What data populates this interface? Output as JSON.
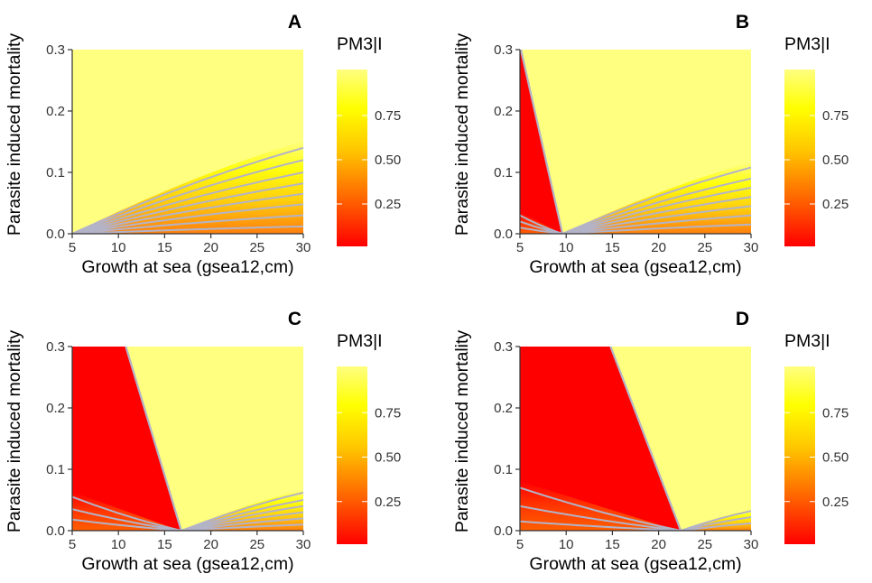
{
  "chart_data": [
    {
      "panel": "A",
      "type": "heatmap",
      "xlabel": "Growth at sea (gsea12,cm)",
      "ylabel": "Parasite induced mortality",
      "xlim": [
        5,
        30
      ],
      "ylim": [
        0,
        0.3
      ],
      "xticks": [
        5,
        10,
        15,
        20,
        25,
        30
      ],
      "yticks": [
        "0.0",
        "0.1",
        "0.2",
        "0.3"
      ],
      "legend": {
        "title": "PM3|I",
        "ticks": [
          "0.25",
          "0.50",
          "0.75"
        ],
        "colors": [
          "#ff0000",
          "#ff6600",
          "#ffaa00",
          "#ffff00",
          "#ffff80"
        ]
      },
      "boundary": {
        "top_x": 5,
        "bottom_x": 5
      },
      "contours_right": [
        0.14,
        0.12,
        0.1,
        0.082,
        0.065,
        0.048,
        0.03,
        0.012
      ],
      "contours_left": []
    },
    {
      "panel": "B",
      "type": "heatmap",
      "xlabel": "Growth at sea (gsea12,cm)",
      "ylabel": "Parasite induced mortality",
      "xlim": [
        5,
        30
      ],
      "ylim": [
        0,
        0.3
      ],
      "xticks": [
        5,
        10,
        15,
        20,
        25,
        30
      ],
      "yticks": [
        "0.0",
        "0.1",
        "0.2",
        "0.3"
      ],
      "legend": {
        "title": "PM3|I",
        "ticks": [
          "0.25",
          "0.50",
          "0.75"
        ],
        "colors": [
          "#ff0000",
          "#ff6600",
          "#ffaa00",
          "#ffff00",
          "#ffff80"
        ]
      },
      "boundary": {
        "top_x": 5.1,
        "bottom_x": 9.6
      },
      "contours_right": [
        0.108,
        0.09,
        0.075,
        0.06,
        0.045,
        0.03,
        0.015
      ],
      "contours_left": [
        0.03,
        0.02,
        0.01
      ]
    },
    {
      "panel": "C",
      "type": "heatmap",
      "xlabel": "Growth at sea (gsea12,cm)",
      "ylabel": "Parasite induced mortality",
      "xlim": [
        5,
        30
      ],
      "ylim": [
        0,
        0.3
      ],
      "xticks": [
        5,
        10,
        15,
        20,
        25,
        30
      ],
      "yticks": [
        "0.0",
        "0.1",
        "0.2",
        "0.3"
      ],
      "legend": {
        "title": "PM3|I",
        "ticks": [
          "0.25",
          "0.50",
          "0.75"
        ],
        "colors": [
          "#ff0000",
          "#ff6600",
          "#ffaa00",
          "#ffff00",
          "#ffff80"
        ]
      },
      "boundary": {
        "top_x": 10.8,
        "bottom_x": 16.8
      },
      "contours_right": [
        0.062,
        0.05,
        0.04,
        0.03,
        0.02,
        0.01
      ],
      "contours_left": [
        0.055,
        0.035,
        0.018
      ]
    },
    {
      "panel": "D",
      "type": "heatmap",
      "xlabel": "Growth at sea (gsea12,cm)",
      "ylabel": "Parasite induced mortality",
      "xlim": [
        5,
        30
      ],
      "ylim": [
        0,
        0.3
      ],
      "xticks": [
        5,
        10,
        15,
        20,
        25,
        30
      ],
      "yticks": [
        "0.0",
        "0.1",
        "0.2",
        "0.3"
      ],
      "legend": {
        "title": "PM3|I",
        "ticks": [
          "0.25",
          "0.50",
          "0.75"
        ],
        "colors": [
          "#ff0000",
          "#ff6600",
          "#ffaa00",
          "#ffff00",
          "#ffff80"
        ]
      },
      "boundary": {
        "top_x": 14.8,
        "bottom_x": 22.4
      },
      "contours_right": [
        0.032,
        0.022,
        0.012
      ],
      "contours_left": [
        0.07,
        0.04,
        0.015
      ]
    }
  ],
  "colors": {
    "low": "#ff0000",
    "mid_low": "#ff7000",
    "mid": "#ffc800",
    "high": "#ffff00",
    "top": "#ffff80",
    "contour": "#b3b3c8",
    "axis": "#333333"
  }
}
